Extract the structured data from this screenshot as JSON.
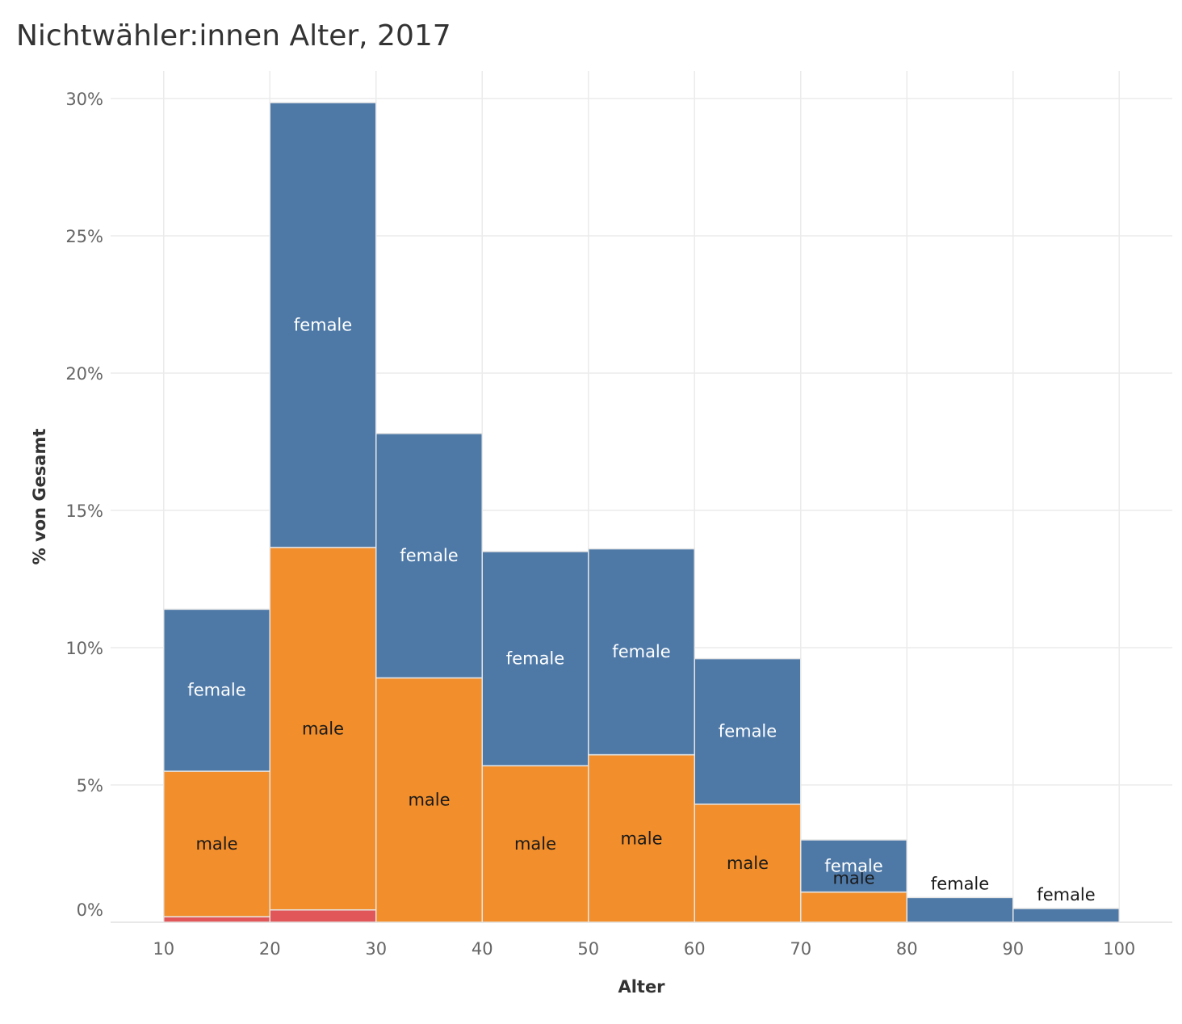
{
  "title": "Nichtwähler:innen Alter, 2017",
  "chart_data": {
    "type": "bar",
    "stacked": true,
    "histogram": true,
    "title": "Nichtwähler:innen Alter, 2017",
    "xlabel": "Alter",
    "ylabel": "% von Gesamt",
    "xlim": [
      5,
      105
    ],
    "ylim": [
      0,
      31
    ],
    "x_ticks": [
      10,
      20,
      30,
      40,
      50,
      60,
      70,
      80,
      90,
      100
    ],
    "x_tick_labels": [
      "10",
      "20",
      "30",
      "40",
      "50",
      "60",
      "70",
      "80",
      "90",
      "100"
    ],
    "y_ticks": [
      0,
      5,
      10,
      15,
      20,
      25,
      30
    ],
    "y_tick_labels": [
      "0%",
      "5%",
      "10%",
      "15%",
      "20%",
      "25%",
      "30%"
    ],
    "grid": true,
    "bins": [
      [
        10,
        20
      ],
      [
        20,
        30
      ],
      [
        30,
        40
      ],
      [
        40,
        50
      ],
      [
        50,
        60
      ],
      [
        60,
        70
      ],
      [
        70,
        80
      ],
      [
        80,
        90
      ],
      [
        90,
        100
      ]
    ],
    "series": [
      {
        "name": "",
        "color": "#e15759",
        "values": [
          0.2,
          0.45,
          0,
          0,
          0,
          0,
          0,
          0,
          0
        ]
      },
      {
        "name": "male",
        "color": "#f28e2b",
        "label_color": "#1a1a1a",
        "values": [
          5.3,
          13.2,
          8.9,
          5.7,
          6.1,
          4.3,
          1.1,
          0,
          0
        ]
      },
      {
        "name": "female",
        "color": "#4e79a7",
        "label_color": "#ffffff",
        "values": [
          5.9,
          16.2,
          8.9,
          7.8,
          7.5,
          5.3,
          1.9,
          0.9,
          0.5
        ]
      }
    ],
    "label_outside_if_below": 1.2,
    "label_outside_color": "#1a1a1a"
  }
}
